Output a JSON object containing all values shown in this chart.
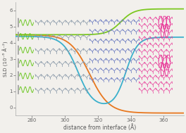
{
  "xlim": [
    270,
    372
  ],
  "ylim": [
    -0.5,
    6.5
  ],
  "xlabel": "distance from interface (Å)",
  "ylabel": "SLD (10⁻⁶ Å⁻²)",
  "xticks": [
    280,
    300,
    320,
    340,
    360
  ],
  "yticks": [
    0,
    1,
    2,
    3,
    4,
    5,
    6
  ],
  "bg_color": "#f2f0ec",
  "curve_orange": {
    "x0": 315,
    "k": 0.17,
    "lo": -0.35,
    "hi": 4.5
  },
  "curve_green": {
    "x0": 334,
    "k": 0.25,
    "lo": 4.5,
    "hi": 6.1
  },
  "curve_blue": {
    "x0_down": 308,
    "k_down": 0.22,
    "lo_down": 0.0,
    "hi_down": 4.4,
    "x0_up": 337,
    "k_up": 0.28,
    "lo_up": 0.0,
    "hi_up": 4.35
  },
  "colors": {
    "orange": "#e8771e",
    "green": "#7cc820",
    "blue": "#3ab0cc",
    "pink": "#e83898",
    "gray_mol": "#8898a8",
    "blue_mol": "#6878c0",
    "green_mol": "#70c828"
  }
}
